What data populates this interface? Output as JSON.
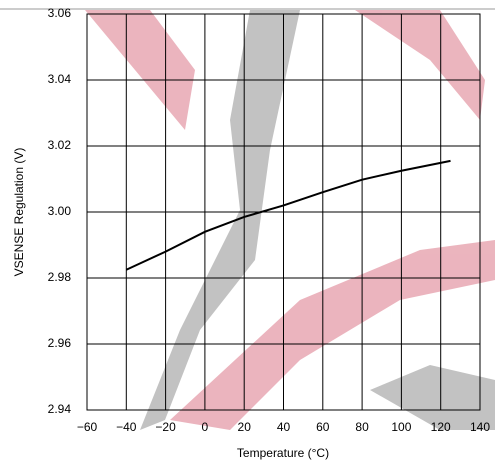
{
  "chart_data": {
    "type": "line",
    "x_label": "Temperature (°C)",
    "y_label": "VSENSE Regulation (V)",
    "x": [
      -40,
      -20,
      0,
      20,
      40,
      60,
      80,
      100,
      125
    ],
    "series": [
      {
        "color": "#000000",
        "values": [
          2.9825,
          2.988,
          2.994,
          2.9985,
          3.002,
          3.006,
          3.0098,
          3.0125,
          3.0155
        ]
      }
    ],
    "xlim": [
      -60,
      140
    ],
    "ylim": [
      2.94,
      3.06
    ],
    "xticks": [
      {
        "value": -60,
        "label": "−60"
      },
      {
        "value": -40,
        "label": "−40"
      },
      {
        "value": -20,
        "label": "−20"
      },
      0,
      20,
      40,
      60,
      80,
      100,
      120,
      140
    ],
    "yticks": [
      2.94,
      2.96,
      2.98,
      {
        "value": 3.0,
        "label": "3.00"
      },
      3.02,
      3.04,
      3.06
    ],
    "grid": true
  }
}
